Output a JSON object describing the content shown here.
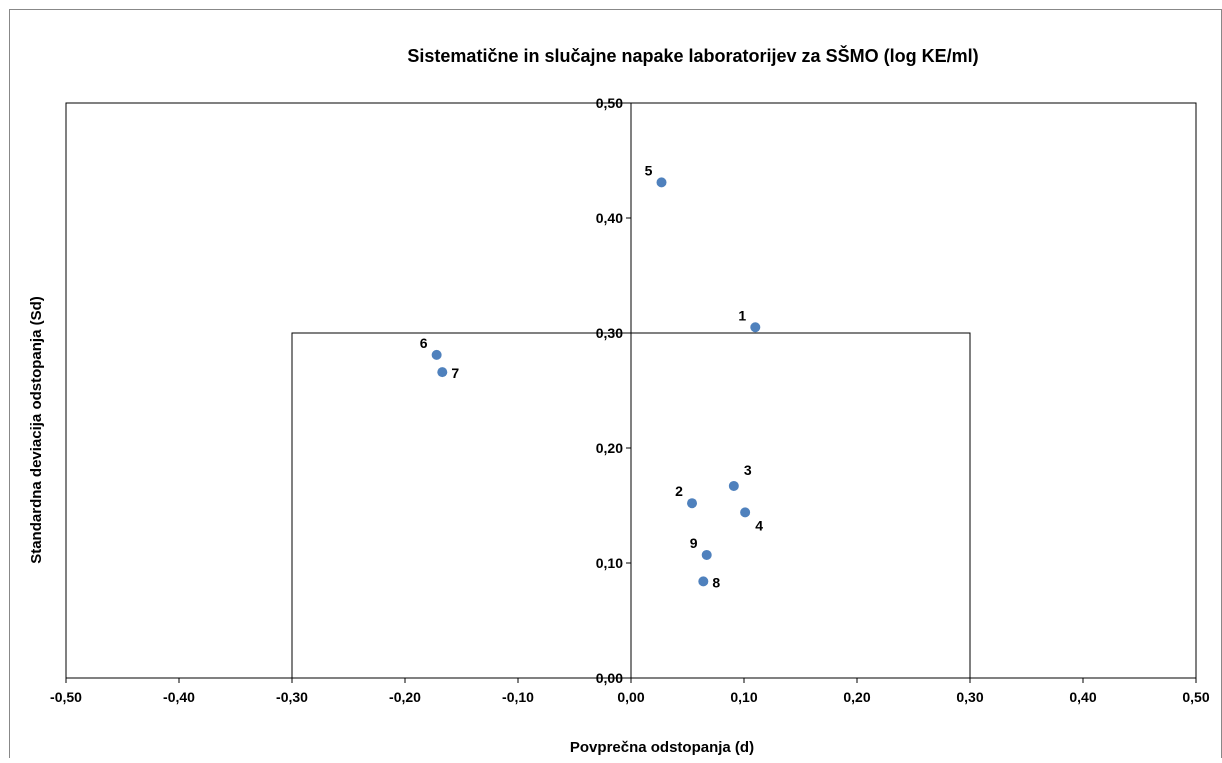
{
  "chart_data": {
    "type": "scatter",
    "title": "Sistematične in slučajne napake laboratorijev za SŠMO (log KE/ml)",
    "xlabel": "Povprečna odstopanja (d)",
    "ylabel": "Standardna deviacija odstopanja (Sd)",
    "xlim": [
      -0.5,
      0.5
    ],
    "ylim": [
      0,
      0.5
    ],
    "x_ticks": [
      -0.5,
      -0.4,
      -0.3,
      -0.2,
      -0.1,
      0,
      0.1,
      0.2,
      0.3,
      0.4,
      0.5
    ],
    "x_tick_labels": [
      "-0,50",
      "-0,40",
      "-0,30",
      "-0,20",
      "-0,10",
      "0,00",
      "0,10",
      "0,20",
      "0,30",
      "0,40",
      "0,50"
    ],
    "y_ticks": [
      0,
      0.1,
      0.2,
      0.3,
      0.4,
      0.5
    ],
    "y_tick_labels": [
      "0,00",
      "0,10",
      "0,20",
      "0,30",
      "0,40",
      "0,50"
    ],
    "grid": false,
    "legend": "none",
    "limit_box": {
      "x": [
        -0.3,
        0.3
      ],
      "y": [
        0,
        0.3
      ]
    },
    "marker_color": "#4f81bd",
    "points": [
      {
        "label": "1",
        "x": 0.11,
        "y": 0.305,
        "label_pos": "top-left"
      },
      {
        "label": "2",
        "x": 0.054,
        "y": 0.152,
        "label_pos": "top-left"
      },
      {
        "label": "3",
        "x": 0.091,
        "y": 0.167,
        "label_pos": "top-right"
      },
      {
        "label": "4",
        "x": 0.101,
        "y": 0.144,
        "label_pos": "bottom-right"
      },
      {
        "label": "5",
        "x": 0.027,
        "y": 0.431,
        "label_pos": "top-left"
      },
      {
        "label": "6",
        "x": -0.172,
        "y": 0.281,
        "label_pos": "top-left"
      },
      {
        "label": "7",
        "x": -0.167,
        "y": 0.266,
        "label_pos": "right"
      },
      {
        "label": "8",
        "x": 0.064,
        "y": 0.084,
        "label_pos": "right"
      },
      {
        "label": "9",
        "x": 0.067,
        "y": 0.107,
        "label_pos": "top-left"
      }
    ]
  }
}
